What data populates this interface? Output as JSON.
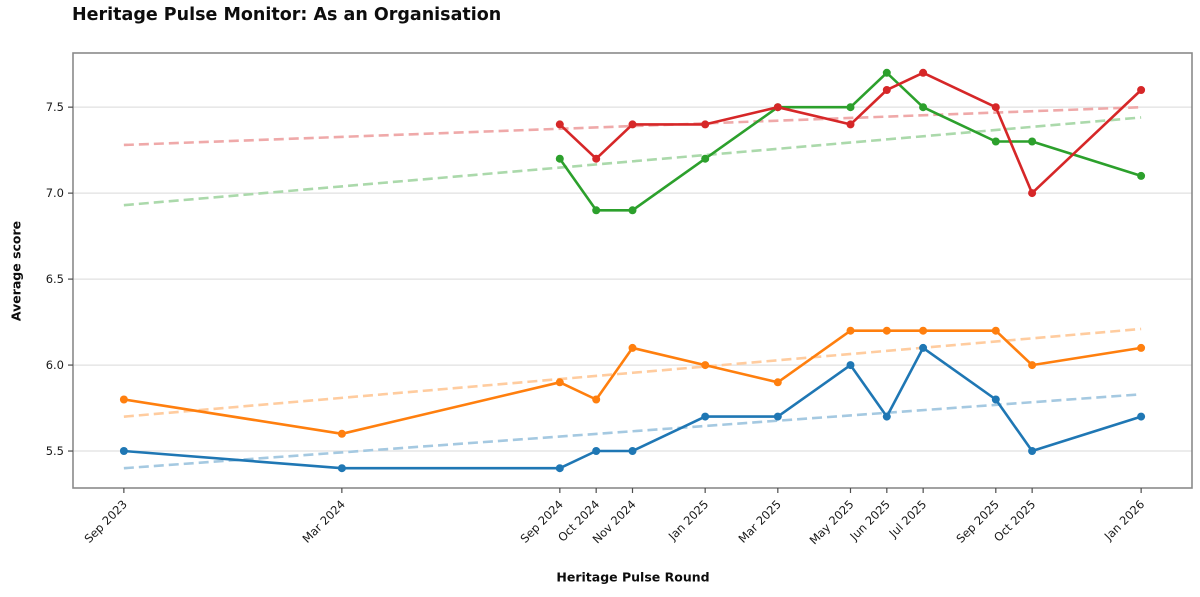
{
  "chart_data": {
    "type": "line",
    "title": "Heritage Pulse Monitor: As an Organisation",
    "xlabel": "Heritage Pulse Round",
    "ylabel": "Average score",
    "categories": [
      "Sep 2023",
      "Mar 2024",
      "Sep 2024",
      "Oct 2024",
      "Nov 2024",
      "Jan 2025",
      "Mar 2025",
      "May 2025",
      "Jun 2025",
      "Jul 2025",
      "Sep 2025",
      "Oct 2025",
      "Jan 2026"
    ],
    "x_months": [
      0,
      6,
      12,
      13,
      14,
      16,
      18,
      20,
      21,
      22,
      24,
      25,
      28
    ],
    "ylim": [
      5.285,
      7.815
    ],
    "yticks": [
      5.5,
      6.0,
      6.5,
      7.0,
      7.5
    ],
    "grid": "horizontal",
    "legend": "none",
    "series": [
      {
        "name": "blue",
        "color": "#1f77b4",
        "start_index": 0,
        "values": [
          5.5,
          5.4,
          5.4,
          5.5,
          5.5,
          5.7,
          5.7,
          6.0,
          5.7,
          6.1,
          5.8,
          5.5,
          5.7
        ]
      },
      {
        "name": "orange",
        "color": "#ff7f0e",
        "start_index": 0,
        "values": [
          5.8,
          5.6,
          5.9,
          5.8,
          6.1,
          6.0,
          5.9,
          6.2,
          6.2,
          6.2,
          6.2,
          6.0,
          6.1
        ]
      },
      {
        "name": "green",
        "color": "#2ca02c",
        "start_index": 2,
        "values": [
          7.2,
          6.9,
          6.9,
          7.2,
          7.5,
          7.5,
          7.7,
          7.5,
          7.3,
          7.3,
          7.1
        ]
      },
      {
        "name": "red",
        "color": "#d62728",
        "start_index": 2,
        "values": [
          7.4,
          7.2,
          7.4,
          7.4,
          7.5,
          7.4,
          7.6,
          7.7,
          7.5,
          7.0,
          7.6
        ]
      }
    ],
    "trendlines": [
      {
        "series": "blue",
        "color": "#a5c9e1",
        "y_start": 5.4,
        "y_end": 5.83
      },
      {
        "series": "orange",
        "color": "#ffcc9f",
        "y_start": 5.7,
        "y_end": 6.21
      },
      {
        "series": "green",
        "color": "#abd9ab",
        "y_start": 6.93,
        "y_end": 7.44
      },
      {
        "series": "red",
        "color": "#efa9a9",
        "y_start": 7.28,
        "y_end": 7.5
      }
    ],
    "style": {
      "grid_color": "#d9d9d9",
      "frame_color": "#8a8a8a",
      "tick_color": "#4d4d4d",
      "tick_label_color": "#1a1a1a"
    }
  }
}
